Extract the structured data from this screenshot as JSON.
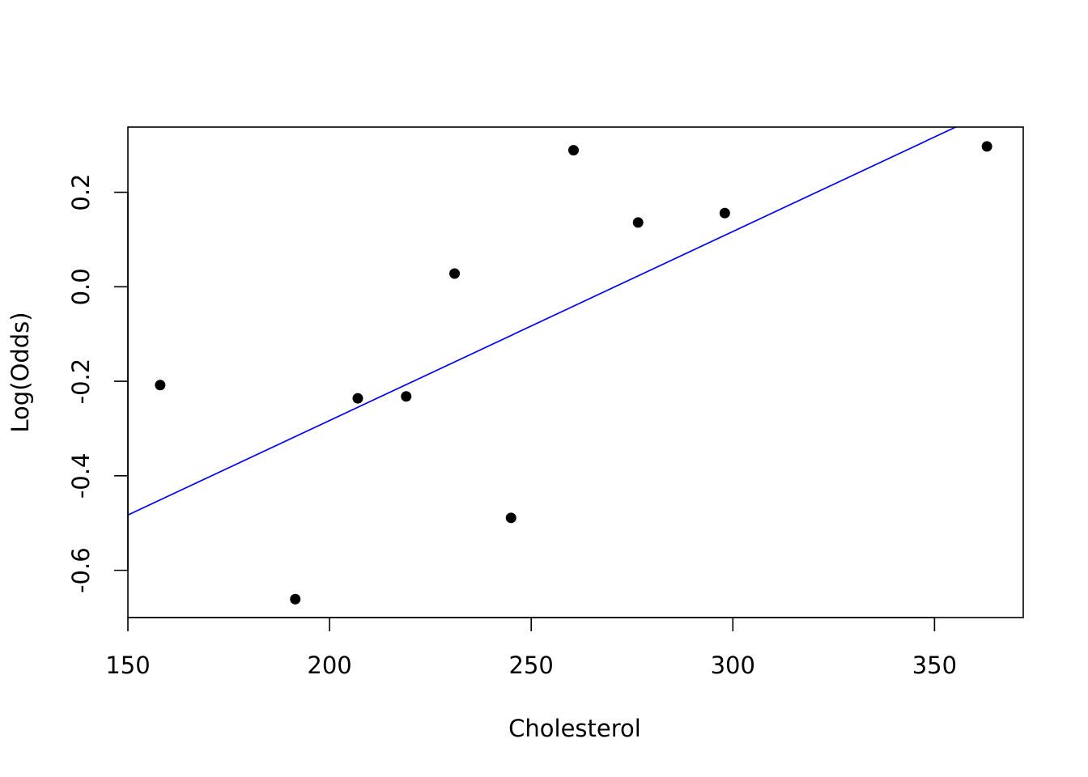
{
  "chart_data": {
    "type": "scatter",
    "title": "",
    "xlabel": "Cholesterol",
    "ylabel": "Log(Odds)",
    "xlim": [
      150,
      372
    ],
    "ylim": [
      -0.7,
      0.338
    ],
    "xticks": [
      150,
      200,
      250,
      300,
      350
    ],
    "xtick_labels": [
      "150",
      "200",
      "250",
      "300",
      "350"
    ],
    "yticks": [
      -0.6,
      -0.4,
      -0.2,
      0.0,
      0.2
    ],
    "ytick_labels": [
      "-0.6",
      "-0.4",
      "-0.2",
      "0.0",
      "0.2"
    ],
    "grid": false,
    "legend": "none",
    "series": [
      {
        "points": [
          {
            "x": 158,
            "y": -0.208
          },
          {
            "x": 191.5,
            "y": -0.661
          },
          {
            "x": 207,
            "y": -0.236
          },
          {
            "x": 219,
            "y": -0.232
          },
          {
            "x": 231,
            "y": 0.028
          },
          {
            "x": 245,
            "y": -0.489
          },
          {
            "x": 260.5,
            "y": 0.289
          },
          {
            "x": 276.5,
            "y": 0.136
          },
          {
            "x": 298,
            "y": 0.156
          },
          {
            "x": 363,
            "y": 0.297
          }
        ],
        "color": "#000000",
        "marker": "filled-circle"
      }
    ],
    "fit_line": {
      "color": "#0000ff",
      "slope": 0.004,
      "intercept": -1.083
    }
  }
}
